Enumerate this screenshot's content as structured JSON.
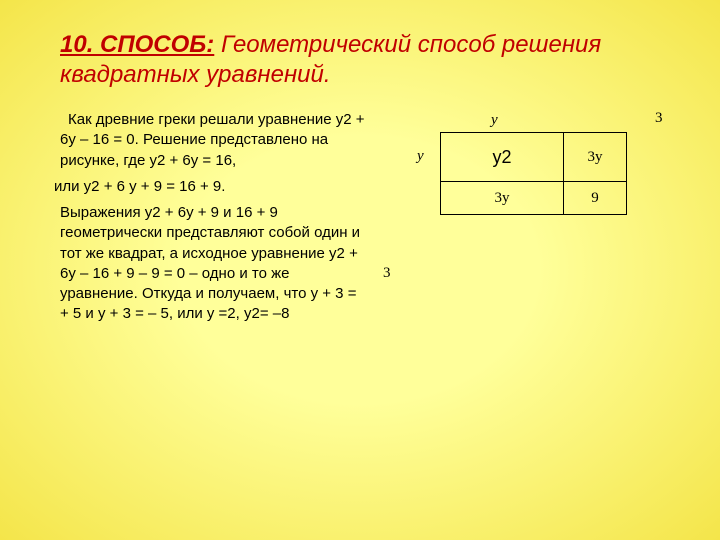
{
  "background": {
    "center_color": "#ffff9a",
    "edge_color": "#f4e54a"
  },
  "title": {
    "lead": "10. СПОСОБ:",
    "rest": " Геометрический способ решения квадратных  уравнений.",
    "color": "#c00000"
  },
  "paragraphs": {
    "p1": "Как древние греки решали уравнение у2 + 6у – 16 = 0. Решение представлено на рисунке, где у2 + 6у = 16,",
    "p2": "или у2 + 6 у + 9 = 16 + 9.",
    "p3": "Выражения у2 + 6у + 9 и 16 + 9 геометрически представляют собой один и тот же квадрат, а исходное уравнение у2 + 6у – 16 + 9 – 9 = 0 – одно и то же уравнение. Откуда и получаем, что у + 3 = + 5 и у + 3 = – 5, или у =2, у2= –8"
  },
  "diagram": {
    "labels": {
      "y_top": "у",
      "three_top": "3",
      "y_left": "у",
      "three_bottom": "3"
    },
    "cells": {
      "y2": "у2",
      "three_y_right": "3у",
      "three_y_bottom": "3у",
      "nine": "9"
    }
  }
}
